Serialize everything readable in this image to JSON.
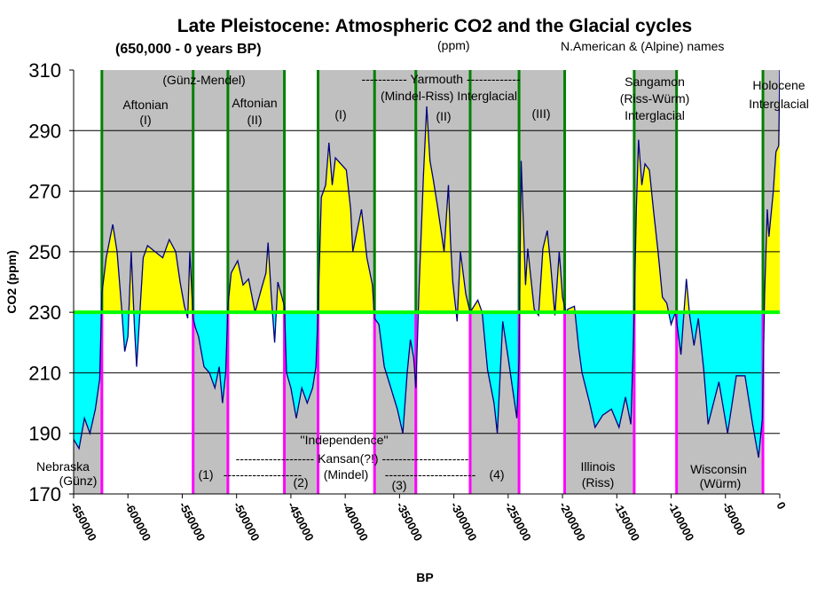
{
  "chart_data": {
    "type": "area",
    "title": "Late Pleistocene: Atmospheric CO2 and the Glacial cycles",
    "subtitle": "(650,000 - 0 years BP)",
    "unit_note": "(ppm)",
    "names_note": "N.American & (Alpine) names",
    "xlabel": "BP",
    "ylabel": "CO2 (ppm)",
    "xlim": [
      -650000,
      0
    ],
    "ylim": [
      170,
      310
    ],
    "baseline": 230,
    "grid": true,
    "x_ticks": [
      "-650000",
      "-600000",
      "-550000",
      "-500000",
      "-450000",
      "-400000",
      "-350000",
      "-300000",
      "-250000",
      "-200000",
      "-150000",
      "-100000",
      "-50000",
      "0"
    ],
    "y_ticks": [
      "170",
      "190",
      "210",
      "230",
      "250",
      "270",
      "290",
      "310"
    ],
    "colors": {
      "line": "#000080",
      "above": "#ffff00",
      "below": "#00ffff",
      "band": "#c0c0c0",
      "baseline": "#00ff00",
      "interglacial_edge": "#008000",
      "glacial_edge": "#ff00ff"
    },
    "boundaries": [
      -624000,
      -540000,
      -508000,
      -456000,
      -425000,
      -373000,
      -335000,
      -285000,
      -240000,
      -198000,
      -134000,
      -95000,
      -15500
    ],
    "top_bands": [
      [
        -624000,
        -456000
      ],
      [
        -425000,
        -198000
      ],
      [
        -134000,
        -95000
      ],
      [
        -15500,
        0
      ]
    ],
    "interglacials": [
      [
        -624000,
        -540000
      ],
      [
        -508000,
        -456000
      ],
      [
        -425000,
        -373000
      ],
      [
        -335000,
        -285000
      ],
      [
        -240000,
        -198000
      ],
      [
        -134000,
        -95000
      ],
      [
        -15500,
        0
      ]
    ],
    "glacials": [
      [
        -650000,
        -624000
      ],
      [
        -540000,
        -508000
      ],
      [
        -456000,
        -425000
      ],
      [
        -373000,
        -335000
      ],
      [
        -285000,
        -240000
      ],
      [
        -198000,
        -134000
      ],
      [
        -95000,
        -15500
      ]
    ],
    "series": [
      {
        "x": [
          -650000,
          -645000,
          -640000,
          -635000,
          -630000,
          -626000,
          -624000,
          -620000,
          -614000,
          -610000,
          -606000,
          -603000,
          -600000,
          -597000,
          -594000,
          -592000,
          -589000,
          -586000,
          -582000,
          -575000,
          -568000,
          -562000,
          -556000,
          -552000,
          -548000,
          -545000,
          -543000,
          -540000,
          -538000,
          -535000,
          -530000,
          -525000,
          -520000,
          -516000,
          -513000,
          -510000,
          -508000,
          -505000,
          -499000,
          -494000,
          -489000,
          -483000,
          -477000,
          -473000,
          -471000,
          -468000,
          -465000,
          -462000,
          -456000,
          -454000,
          -450000,
          -445000,
          -440000,
          -435000,
          -430000,
          -427000,
          -425000,
          -422000,
          -418000,
          -415000,
          -412000,
          -409000,
          -399000,
          -395000,
          -393000,
          -385000,
          -380000,
          -375000,
          -373000,
          -369000,
          -364000,
          -358000,
          -352000,
          -347000,
          -343000,
          -340000,
          -337000,
          -335000,
          -332000,
          -328000,
          -325000,
          -322000,
          -319000,
          -315000,
          -309000,
          -305000,
          -303000,
          -301000,
          -297000,
          -294000,
          -289000,
          -285000,
          -278000,
          -274000,
          -269000,
          -263000,
          -260000,
          -255000,
          -250000,
          -246000,
          -242000,
          -240000,
          -238000,
          -234000,
          -232000,
          -226000,
          -222000,
          -218000,
          -214000,
          -211000,
          -207000,
          -203000,
          -200000,
          -197000,
          -195000,
          -189000,
          -185000,
          -182000,
          -175000,
          -170000,
          -163000,
          -155000,
          -148000,
          -142000,
          -137000,
          -134000,
          -132000,
          -130000,
          -127000,
          -124000,
          -120000,
          -116000,
          -112000,
          -108000,
          -104000,
          -100000,
          -96000,
          -91000,
          -86000,
          -83000,
          -79000,
          -75000,
          -70000,
          -66000,
          -56000,
          -48000,
          -40000,
          -32000,
          -25000,
          -19500,
          -16000,
          -14000,
          -11500,
          -10000,
          -6000,
          -3500,
          -1000,
          0
        ],
        "y": [
          188,
          185,
          195,
          190,
          198,
          208,
          236,
          248,
          259,
          250,
          232,
          217,
          222,
          250,
          225,
          212,
          230,
          248,
          252,
          250,
          248,
          254,
          250,
          240,
          232,
          228,
          250,
          228,
          225,
          222,
          212,
          210,
          205,
          212,
          200,
          210,
          232,
          243,
          247,
          239,
          241,
          230,
          238,
          243,
          253,
          235,
          220,
          240,
          232,
          210,
          205,
          195,
          205,
          200,
          205,
          212,
          230,
          268,
          272,
          286,
          272,
          281,
          277,
          264,
          250,
          264,
          248,
          239,
          228,
          226,
          212,
          205,
          198,
          190,
          210,
          221,
          215,
          205,
          238,
          275,
          298,
          280,
          274,
          265,
          250,
          272,
          253,
          240,
          227,
          250,
          236,
          230,
          234,
          230,
          211,
          200,
          190,
          227,
          215,
          205,
          195,
          215,
          280,
          239,
          251,
          231,
          229,
          251,
          257,
          246,
          229,
          250,
          235,
          230,
          231,
          232,
          218,
          210,
          200,
          192,
          196,
          198,
          192,
          202,
          193,
          230,
          265,
          287,
          272,
          279,
          277,
          263,
          250,
          235,
          233,
          226,
          230,
          216,
          241,
          229,
          219,
          228,
          211,
          193,
          207,
          190,
          209,
          209,
          193,
          182,
          195,
          236,
          264,
          255,
          270,
          283,
          285,
          310
        ]
      }
    ],
    "annotations": {
      "gunz_mendel": "(Günz-Mendel)",
      "aftonian1": "Aftonian",
      "aftonian1_num": "(I)",
      "aftonian2": "Aftonian",
      "aftonian2_num": "(II)",
      "yarmouth": "----------- Yarmouth  -------------",
      "mindel_riss": "(Mindel-Riss) Interglacial",
      "y1": "(I)",
      "y2": "(II)",
      "y3": "(III)",
      "sangamon": "Sangamon",
      "riss_wurm": "(Riss-Würm)",
      "sangamon_ig": "Interglacial",
      "holocene": "Holocene",
      "holocene_ig": "Interglacial",
      "independence": "''Independence''",
      "kansan": "------------------- Kansan(?!) ---------------------",
      "k1": "(1)",
      "mindel_left": "-------------------",
      "mindel": "(Mindel)",
      "mindel_right": "----------------------",
      "k4": "(4)",
      "k2": "(2)",
      "k3": "(3)",
      "nebraska": "Nebraska",
      "gunz": "(Günz)",
      "illinois": "Illinois",
      "riss": "(Riss)",
      "wisconsin": "Wisconsin",
      "wurm": "(Würm)"
    }
  }
}
